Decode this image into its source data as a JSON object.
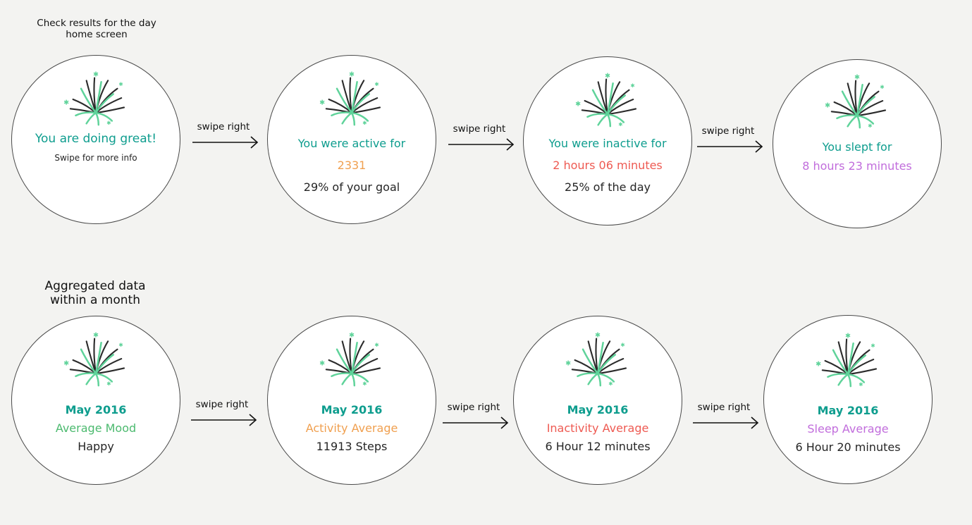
{
  "headings": {
    "daily": [
      "Check results for the day",
      "home screen"
    ],
    "monthly": [
      "Aggregated data",
      "within a month"
    ]
  },
  "arrow_label": "swipe right",
  "daily_screens": [
    {
      "line1": "You are doing great!",
      "line2": "Swipe for more info"
    },
    {
      "line1": "You were active for",
      "line2": "2331",
      "line3": "29% of your goal"
    },
    {
      "line1": "You were inactive for",
      "line2": "2 hours 06 minutes",
      "line3": "25% of the day"
    },
    {
      "line1": "You slept for",
      "line2": "8 hours 23 minutes"
    }
  ],
  "monthly_screens": [
    {
      "month": "May 2016",
      "metric": "Average Mood",
      "value": "Happy"
    },
    {
      "month": "May 2016",
      "metric": "Activity Average",
      "value": "11913 Steps"
    },
    {
      "month": "May 2016",
      "metric": "Inactivity Average",
      "value": "6 Hour 12 minutes"
    },
    {
      "month": "May 2016",
      "metric": "Sleep Average",
      "value": "6 Hour 20 minutes"
    }
  ],
  "colors": {
    "teal": "#0e9d8e",
    "orange": "#f0a050",
    "red": "#ee5a52",
    "purple": "#c16ddc",
    "green": "#4cba6f"
  }
}
